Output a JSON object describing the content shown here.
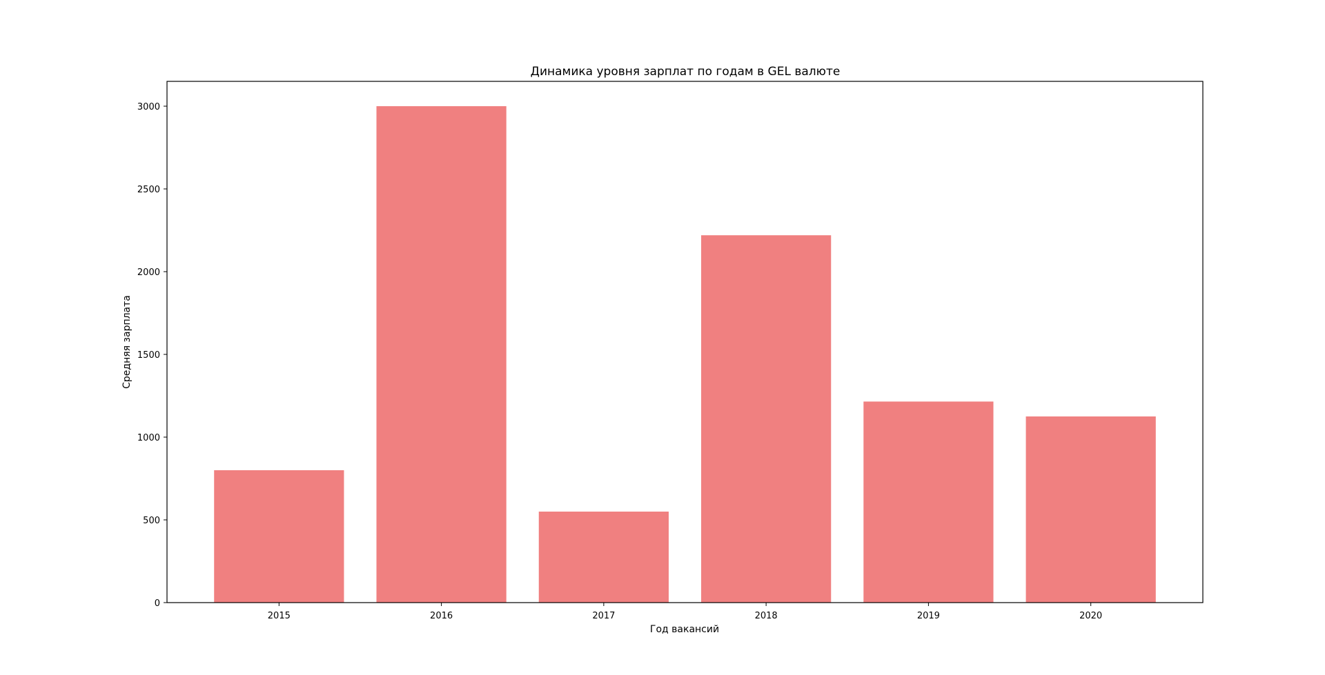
{
  "chart_data": {
    "type": "bar",
    "title": "Динамика уровня зарплат по годам в GEL валюте",
    "xlabel": "Год вакансий",
    "ylabel": "Средняя зарплата",
    "categories": [
      "2015",
      "2016",
      "2017",
      "2018",
      "2019",
      "2020"
    ],
    "values": [
      800,
      3000,
      550,
      2220,
      1215,
      1125
    ],
    "ylim": [
      0,
      3150
    ],
    "yticks": [
      0,
      500,
      1000,
      1500,
      2000,
      2500,
      3000
    ],
    "bar_color": "#f08080",
    "grid": false,
    "legend": "none"
  }
}
